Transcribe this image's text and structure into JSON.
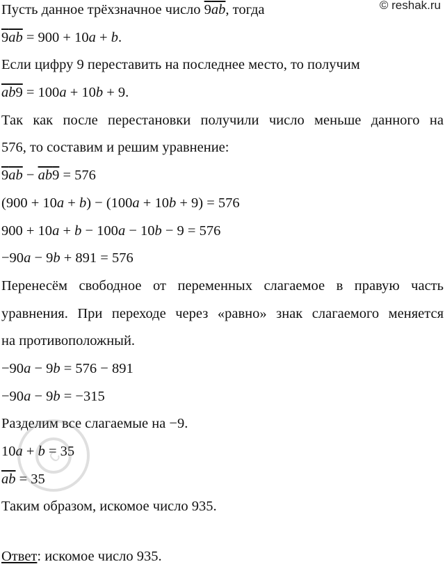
{
  "watermark": {
    "text": "© reshak.ru",
    "circle_text": "reshak.ru"
  },
  "lines": [
    {
      "parts": [
        {
          "t": "Пусть данное трёхзначное число "
        },
        {
          "t": "9",
          "o": 1
        },
        {
          "t": "ab",
          "o": 1,
          "i": 1
        },
        {
          "t": ", тогда"
        }
      ]
    },
    {
      "parts": [
        {
          "t": "9",
          "o": 1
        },
        {
          "t": "ab",
          "o": 1,
          "i": 1
        },
        {
          "t": " = 900 + 10"
        },
        {
          "t": "a",
          "i": 1
        },
        {
          "t": " + "
        },
        {
          "t": "b",
          "i": 1
        },
        {
          "t": "."
        }
      ]
    },
    {
      "parts": [
        {
          "t": "Если цифру 9 переставить на последнее место, то получим"
        }
      ]
    },
    {
      "parts": [
        {
          "t": "ab",
          "o": 1,
          "i": 1
        },
        {
          "t": "9",
          "o": 1
        },
        {
          "t": " = 100"
        },
        {
          "t": "a",
          "i": 1
        },
        {
          "t": " + 10"
        },
        {
          "t": "b",
          "i": 1
        },
        {
          "t": " + 9."
        }
      ]
    },
    {
      "just": 1,
      "parts": [
        {
          "t": "Так как после перестановки получили число меньше данного на"
        }
      ]
    },
    {
      "parts": [
        {
          "t": "576, то составим и решим уравнение:"
        }
      ]
    },
    {
      "parts": [
        {
          "t": "9",
          "o": 1
        },
        {
          "t": "ab",
          "o": 1,
          "i": 1
        },
        {
          "t": " − "
        },
        {
          "t": "ab",
          "o": 1,
          "i": 1
        },
        {
          "t": "9",
          "o": 1
        },
        {
          "t": " = 576"
        }
      ]
    },
    {
      "parts": [
        {
          "t": "(900 + 10"
        },
        {
          "t": "a",
          "i": 1
        },
        {
          "t": " + "
        },
        {
          "t": "b",
          "i": 1
        },
        {
          "t": ") − (100"
        },
        {
          "t": "a",
          "i": 1
        },
        {
          "t": " + 10"
        },
        {
          "t": "b",
          "i": 1
        },
        {
          "t": " + 9) = 576"
        }
      ]
    },
    {
      "parts": [
        {
          "t": "900 + 10"
        },
        {
          "t": "a",
          "i": 1
        },
        {
          "t": " + "
        },
        {
          "t": "b",
          "i": 1
        },
        {
          "t": " − 100"
        },
        {
          "t": "a",
          "i": 1
        },
        {
          "t": " − 10"
        },
        {
          "t": "b",
          "i": 1
        },
        {
          "t": " − 9 = 576"
        }
      ]
    },
    {
      "parts": [
        {
          "t": "−90"
        },
        {
          "t": "a",
          "i": 1
        },
        {
          "t": " − 9"
        },
        {
          "t": "b",
          "i": 1
        },
        {
          "t": " + 891 = 576"
        }
      ]
    },
    {
      "just": 1,
      "parts": [
        {
          "t": "Перенесём свободное от переменных слагаемое в правую часть"
        }
      ]
    },
    {
      "just": 1,
      "parts": [
        {
          "t": "уравнения. При переходе через «равно» знак слагаемого меняется"
        }
      ]
    },
    {
      "parts": [
        {
          "t": "на противоположный."
        }
      ]
    },
    {
      "parts": [
        {
          "t": "−90"
        },
        {
          "t": "a",
          "i": 1
        },
        {
          "t": " − 9"
        },
        {
          "t": "b",
          "i": 1
        },
        {
          "t": " = 576 − 891"
        }
      ]
    },
    {
      "parts": [
        {
          "t": "−90"
        },
        {
          "t": "a",
          "i": 1
        },
        {
          "t": " − 9"
        },
        {
          "t": "b",
          "i": 1
        },
        {
          "t": " = −315"
        }
      ]
    },
    {
      "parts": [
        {
          "t": "Разделим все слагаемые на −9."
        }
      ]
    },
    {
      "parts": [
        {
          "t": "10"
        },
        {
          "t": "a",
          "i": 1
        },
        {
          "t": " + "
        },
        {
          "t": "b",
          "i": 1
        },
        {
          "t": " = 35"
        }
      ]
    },
    {
      "parts": [
        {
          "t": "ab",
          "o": 1,
          "i": 1
        },
        {
          "t": " = 35"
        }
      ]
    },
    {
      "parts": [
        {
          "t": "Таким образом, искомое число 935."
        }
      ]
    }
  ],
  "answer": {
    "label": "Ответ",
    "text": ": искомое число 935."
  }
}
